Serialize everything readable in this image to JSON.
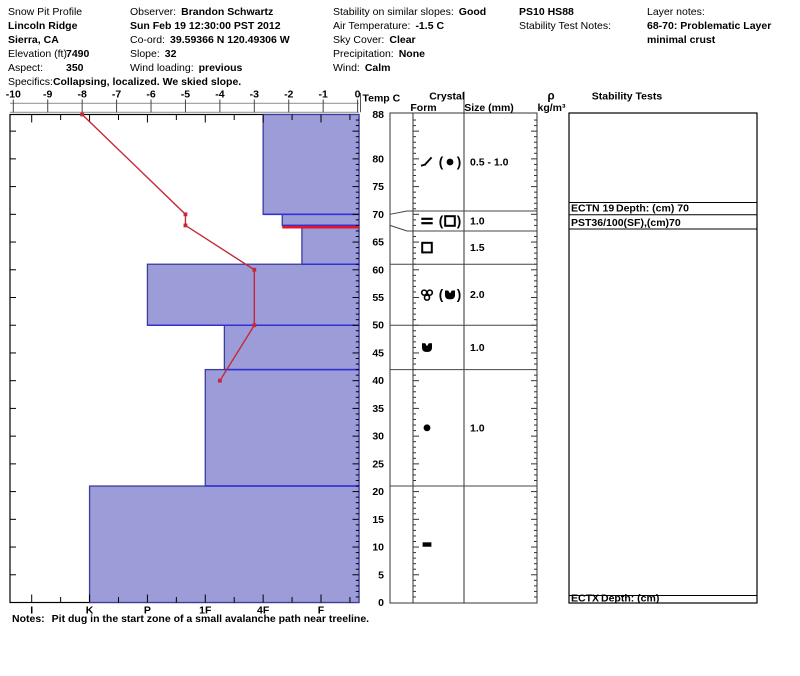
{
  "window": {
    "background": "#ffffff"
  },
  "header": {
    "title": "Snow Pit Profile",
    "location_name": "Lincoln Ridge",
    "region": "Sierra, CA",
    "elevation_label": "Elevation (ft)",
    "elevation_value": "7490",
    "aspect_label": "Aspect:",
    "aspect_value": "350",
    "observer_label": "Observer:",
    "observer_value": "Brandon Schwartz",
    "datetime": "Sun Feb 19 12:30:00 PST 2012",
    "coord_label": "Co-ord:",
    "coord_value": "39.59366 N 120.49306 W",
    "slope_label": "Slope:",
    "slope_value": "32",
    "wind_loading_label": "Wind loading:",
    "wind_loading_value": "previous",
    "stability_slopes_label": "Stability on similar slopes:",
    "stability_slopes_value": "Good",
    "air_temp_label": "Air Temperature:",
    "air_temp_value": "-1.5 C",
    "sky_cover_label": "Sky Cover:",
    "sky_cover_value": "Clear",
    "precipitation_label": "Precipitation:",
    "precipitation_value": "None",
    "wind_label": "Wind:",
    "wind_value": "Calm",
    "pit_code": "PS10 HS88",
    "stability_test_notes_label": "Stability Test Notes:",
    "layer_notes_label": "Layer notes:",
    "layer_notes_value_line1": "68-70: Problematic Layer",
    "layer_notes_value_line2": "minimal crust",
    "specifics_label": "Specifics:",
    "specifics_value": "Collapsing, localized. We skied slope."
  },
  "notes": {
    "label": "Notes:",
    "text": "Pit dug in the start zone of a small avalanche path near treeline."
  },
  "chart_data": {
    "type": "snow-pit-profile",
    "temp_axis": {
      "label": "Temp C",
      "unit": "C",
      "ticks": [
        -10,
        -9,
        -8,
        -7,
        -6,
        -5,
        -4,
        -3,
        -2,
        -1,
        0
      ]
    },
    "depth_axis": {
      "unit": "cm",
      "max": 88,
      "labels": [
        88,
        80,
        75,
        70,
        65,
        60,
        55,
        50,
        45,
        40,
        35,
        30,
        25,
        20,
        15,
        10,
        5,
        0
      ]
    },
    "hardness_axis": {
      "categories": [
        "I",
        "K",
        "P",
        "1F",
        "4F",
        "F"
      ]
    },
    "column_headers": {
      "crystal": "Crystal",
      "form": "Form",
      "size": "Size (mm)",
      "rho": "ρ",
      "rho_unit": "kg/m³",
      "stability": "Stability Tests"
    },
    "temperature_profile": [
      {
        "depth_cm": 88,
        "temp_c": -8
      },
      {
        "depth_cm": 70,
        "temp_c": -5
      },
      {
        "depth_cm": 68,
        "temp_c": -5
      },
      {
        "depth_cm": 60,
        "temp_c": -3
      },
      {
        "depth_cm": 50,
        "temp_c": -3
      },
      {
        "depth_cm": 40,
        "temp_c": -4
      }
    ],
    "layers": [
      {
        "top_cm": 88,
        "bottom_cm": 70,
        "hardness": "4F",
        "hardness_index": 4,
        "forms": [
          {
            "g": "decomposing-fragments"
          },
          {
            "g": "rounded-grains",
            "paren": true
          }
        ],
        "size_mm": "0.5 - 1.0"
      },
      {
        "top_cm": 70,
        "bottom_cm": 68,
        "hardness": "4F-",
        "hardness_index": 4.33,
        "forms": [
          {
            "g": "crust"
          },
          {
            "g": "facets",
            "paren": true
          }
        ],
        "size_mm": "1.0"
      },
      {
        "top_cm": 68,
        "bottom_cm": 61,
        "hardness": "F+",
        "hardness_index": 4.67,
        "forms": [
          {
            "g": "facets"
          }
        ],
        "size_mm": "1.5"
      },
      {
        "top_cm": 61,
        "bottom_cm": 50,
        "hardness": "P",
        "hardness_index": 2,
        "forms": [
          {
            "g": "clustered-rounds"
          },
          {
            "g": "melt-freeze-crust",
            "paren": true
          }
        ],
        "size_mm": "2.0"
      },
      {
        "top_cm": 50,
        "bottom_cm": 42,
        "hardness": "1F-",
        "hardness_index": 3.33,
        "forms": [
          {
            "g": "melt-freeze-crust"
          }
        ],
        "size_mm": "1.0"
      },
      {
        "top_cm": 42,
        "bottom_cm": 21,
        "hardness": "1F",
        "hardness_index": 3,
        "forms": [
          {
            "g": "rounded-grains"
          }
        ],
        "size_mm": "1.0"
      },
      {
        "top_cm": 21,
        "bottom_cm": 0,
        "hardness": "K",
        "hardness_index": 1,
        "forms": [
          {
            "g": "ice-layer"
          }
        ],
        "size_mm": ""
      }
    ],
    "problem_layer": {
      "depth_cm": 68,
      "from_hardness_index": 4.33
    },
    "stability_tests": [
      {
        "label": "ECTN 19",
        "detail": "Depth: (cm) 70"
      },
      {
        "label": "PST36/100(SF),(cm)70",
        "detail": ""
      },
      {
        "label": "ECTX",
        "detail": "Depth: (cm)"
      }
    ],
    "colors": {
      "bar_fill": "#9c9cd8",
      "bar_border": "#3c3c9c",
      "layer_line": "#3030d8",
      "temp_line": "#c62838",
      "problem_line": "#e0182c",
      "axis_gray": "#9a9a9a",
      "grid_dark": "#333333"
    }
  }
}
